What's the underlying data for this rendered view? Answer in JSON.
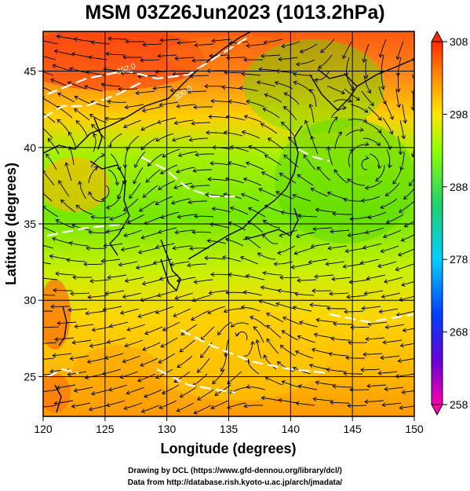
{
  "title": "MSM 03Z26Jun2023 (1013.2hPa)",
  "map": {
    "xaxis": {
      "label": "Longitude (degrees)",
      "ticks": [
        120,
        125,
        130,
        135,
        140,
        145,
        150
      ],
      "range": [
        120,
        150
      ]
    },
    "yaxis": {
      "label": "Latitude  (degrees)",
      "ticks": [
        25,
        30,
        35,
        40,
        45
      ],
      "range": [
        22.4,
        47.6
      ]
    },
    "grid": true,
    "field": "temperature (K) with wind streamlines",
    "contour_labels": [
      "302.0",
      "300.0"
    ]
  },
  "colorbar": {
    "ticks": [
      "308",
      "298",
      "288",
      "278",
      "268",
      "258"
    ],
    "range": [
      258,
      308
    ],
    "stops": [
      "#ff00aa",
      "#3a00d0",
      "#0050ff",
      "#00c8ff",
      "#20d070",
      "#8cff00",
      "#ffe600",
      "#ff8c00",
      "#ff2a00"
    ]
  },
  "credits": {
    "line1": "Drawing by DCL (https://www.gfd-dennou.org/library/dcl/)",
    "line2": "Data from http://database.rish.kyoto-u.ac.jp/arch/jmadata/"
  }
}
